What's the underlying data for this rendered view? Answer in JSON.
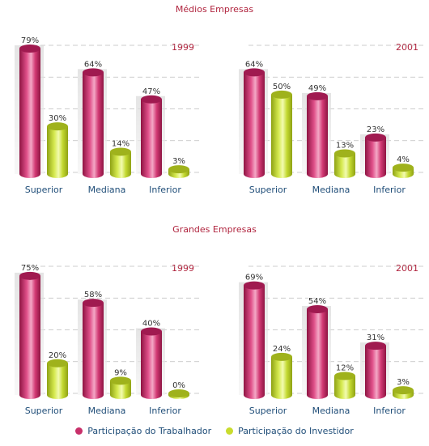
{
  "titles": {
    "medias": "Médios Empresas",
    "grandes": "Grandes Empresas"
  },
  "colors": {
    "trabalhador": "#c8306a",
    "investidor": "#c9dc2e",
    "year": "#b0243e",
    "label": "#1f4d78"
  },
  "legend": {
    "trabalhador": "Participação do Trabalhador",
    "investidor": "Participação do Investidor"
  },
  "chart_data": [
    {
      "type": "bar",
      "group": "Médios Empresas",
      "year": "1999",
      "categories": [
        "Superior",
        "Mediana",
        "Inferior"
      ],
      "series": [
        {
          "name": "Participação do Trabalhador",
          "values": [
            79,
            64,
            47
          ]
        },
        {
          "name": "Participação do Investidor",
          "values": [
            30,
            14,
            3
          ]
        }
      ],
      "ylim": [
        0,
        80
      ]
    },
    {
      "type": "bar",
      "group": "Médios Empresas",
      "year": "2001",
      "categories": [
        "Superior",
        "Mediana",
        "Inferior"
      ],
      "series": [
        {
          "name": "Participação do Trabalhador",
          "values": [
            64,
            49,
            23
          ]
        },
        {
          "name": "Participação do Investidor",
          "values": [
            50,
            13,
            4
          ]
        }
      ],
      "ylim": [
        0,
        80
      ]
    },
    {
      "type": "bar",
      "group": "Grandes Empresas",
      "year": "1999",
      "categories": [
        "Superior",
        "Mediana",
        "Inferior"
      ],
      "series": [
        {
          "name": "Participação do Trabalhador",
          "values": [
            75,
            58,
            40
          ]
        },
        {
          "name": "Participação do Investidor",
          "values": [
            20,
            9,
            0
          ]
        }
      ],
      "ylim": [
        0,
        80
      ]
    },
    {
      "type": "bar",
      "group": "Grandes Empresas",
      "year": "2001",
      "categories": [
        "Superior",
        "Mediana",
        "Inferior"
      ],
      "series": [
        {
          "name": "Participação do Trabalhador",
          "values": [
            69,
            54,
            31
          ]
        },
        {
          "name": "Participação do Investidor",
          "values": [
            24,
            12,
            3
          ]
        }
      ],
      "ylim": [
        0,
        80
      ]
    }
  ]
}
